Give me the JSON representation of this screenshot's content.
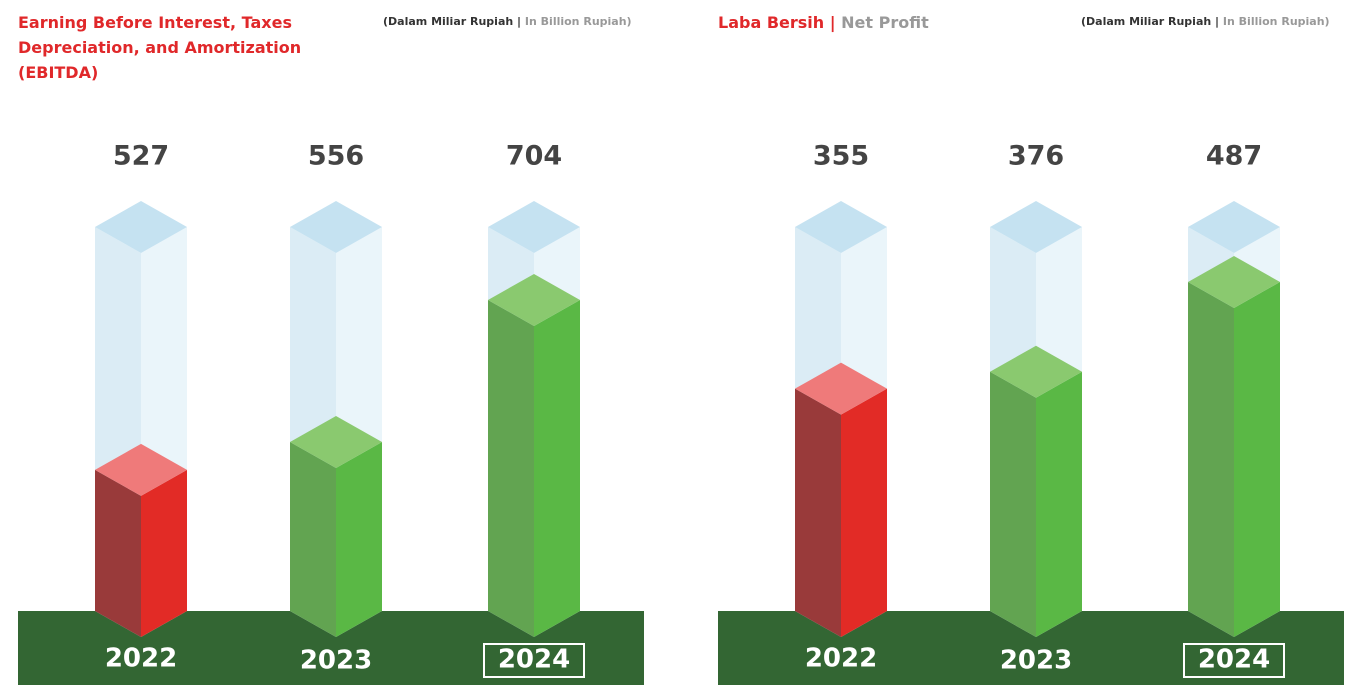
{
  "chart_data": [
    {
      "type": "bar3d",
      "title": [
        "Earning Before Interest, Taxes Depreciation, and Amortization (EBITDA)"
      ],
      "subtitle": [
        "(Dalam Miliar Rupiah |",
        "In Billion Rupiah)"
      ],
      "categories": [
        "2022",
        "2023",
        "2024"
      ],
      "values": [
        527,
        556,
        704
      ],
      "colors": [
        "red",
        "green",
        "green"
      ],
      "ylim": [
        380,
        780
      ]
    },
    {
      "type": "bar3d",
      "title": [
        "Laba Bersih |",
        "Net Profit"
      ],
      "subtitle": [
        "(Dalam Miliar Rupiah |",
        "In Billion Rupiah)"
      ],
      "categories": [
        "2022",
        "2023",
        "2024"
      ],
      "values": [
        355,
        376,
        487
      ],
      "colors": [
        "red",
        "green",
        "green"
      ],
      "ylim": [
        80,
        555
      ]
    }
  ]
}
